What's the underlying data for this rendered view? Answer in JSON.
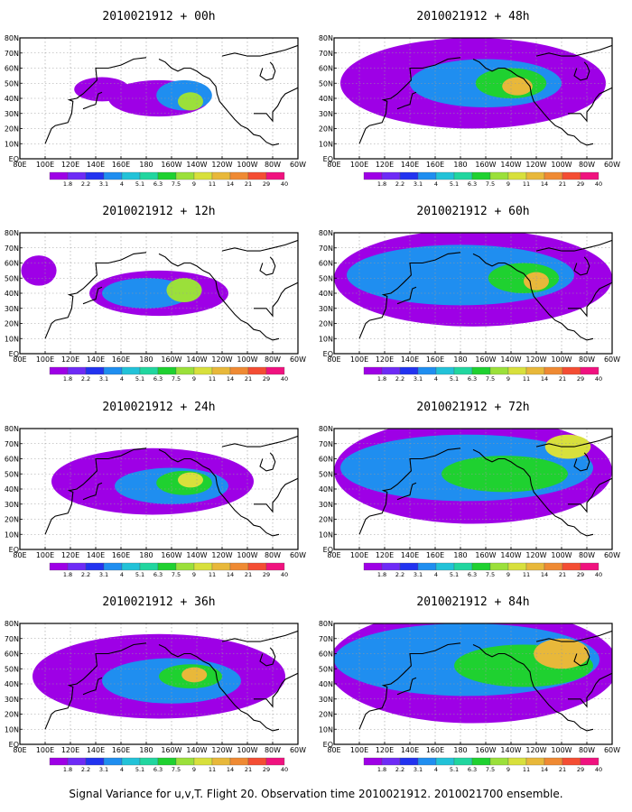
{
  "chart_data": {
    "type": "heatmap",
    "caption": "Signal Variance for u,v,T. Flight 20. Observation time 2010021912. 2010021700 ensemble.",
    "x_ticks": [
      "80E",
      "100E",
      "120E",
      "140E",
      "160E",
      "180",
      "160W",
      "140W",
      "120W",
      "100W",
      "80W",
      "60W"
    ],
    "x_range": [
      80,
      300
    ],
    "y_ticks": [
      "EQ",
      "10N",
      "20N",
      "30N",
      "40N",
      "50N",
      "60N",
      "70N",
      "80N"
    ],
    "y_range": [
      0,
      80
    ],
    "grid": true,
    "colorbar": {
      "labels": [
        "1.8",
        "2.2",
        "3.1",
        "4",
        "5.1",
        "6.3",
        "7.5",
        "9",
        "11",
        "14",
        "21",
        "29",
        "40"
      ],
      "colors": [
        "#9e00e6",
        "#6e2bf6",
        "#2233f0",
        "#1f8ef0",
        "#22c2d8",
        "#21d69f",
        "#1fd130",
        "#9be03a",
        "#d8e03c",
        "#e8b83a",
        "#ef8a33",
        "#f44d33",
        "#f0127f"
      ]
    },
    "panels": [
      {
        "title": "2010021912 + 00h",
        "lead": 0,
        "bands": [
          {
            "cx": 190,
            "cy": 40,
            "rx": 40,
            "ry": 12,
            "lvl": 0
          },
          {
            "cx": 145,
            "cy": 46,
            "rx": 22,
            "ry": 8,
            "lvl": 0
          },
          {
            "cx": 210,
            "cy": 42,
            "rx": 22,
            "ry": 10,
            "lvl": 3
          },
          {
            "cx": 215,
            "cy": 38,
            "rx": 10,
            "ry": 6,
            "lvl": 7
          }
        ]
      },
      {
        "title": "2010021912 + 12h",
        "lead": 12,
        "bands": [
          {
            "cx": 190,
            "cy": 40,
            "rx": 55,
            "ry": 15,
            "lvl": 0
          },
          {
            "cx": 95,
            "cy": 55,
            "rx": 14,
            "ry": 10,
            "lvl": 0
          },
          {
            "cx": 180,
            "cy": 40,
            "rx": 35,
            "ry": 10,
            "lvl": 3
          },
          {
            "cx": 210,
            "cy": 42,
            "rx": 14,
            "ry": 8,
            "lvl": 7
          }
        ]
      },
      {
        "title": "2010021912 + 24h",
        "lead": 24,
        "bands": [
          {
            "cx": 185,
            "cy": 45,
            "rx": 80,
            "ry": 22,
            "lvl": 0
          },
          {
            "cx": 200,
            "cy": 42,
            "rx": 45,
            "ry": 12,
            "lvl": 3
          },
          {
            "cx": 210,
            "cy": 44,
            "rx": 22,
            "ry": 8,
            "lvl": 6
          },
          {
            "cx": 215,
            "cy": 46,
            "rx": 10,
            "ry": 5,
            "lvl": 8
          }
        ]
      },
      {
        "title": "2010021912 + 36h",
        "lead": 36,
        "bands": [
          {
            "cx": 190,
            "cy": 45,
            "rx": 100,
            "ry": 28,
            "lvl": 0
          },
          {
            "cx": 200,
            "cy": 42,
            "rx": 55,
            "ry": 15,
            "lvl": 3
          },
          {
            "cx": 215,
            "cy": 45,
            "rx": 25,
            "ry": 8,
            "lvl": 6
          },
          {
            "cx": 218,
            "cy": 46,
            "rx": 10,
            "ry": 5,
            "lvl": 9
          }
        ]
      },
      {
        "title": "2010021912 + 48h",
        "lead": 48,
        "bands": [
          {
            "cx": 190,
            "cy": 50,
            "rx": 105,
            "ry": 30,
            "lvl": 0
          },
          {
            "cx": 200,
            "cy": 50,
            "rx": 60,
            "ry": 16,
            "lvl": 3
          },
          {
            "cx": 220,
            "cy": 50,
            "rx": 28,
            "ry": 10,
            "lvl": 6
          },
          {
            "cx": 225,
            "cy": 48,
            "rx": 12,
            "ry": 6,
            "lvl": 9
          }
        ]
      },
      {
        "title": "2010021912 + 60h",
        "lead": 60,
        "bands": [
          {
            "cx": 190,
            "cy": 50,
            "rx": 110,
            "ry": 32,
            "lvl": 0
          },
          {
            "cx": 180,
            "cy": 52,
            "rx": 90,
            "ry": 20,
            "lvl": 3
          },
          {
            "cx": 230,
            "cy": 50,
            "rx": 28,
            "ry": 10,
            "lvl": 6
          },
          {
            "cx": 240,
            "cy": 48,
            "rx": 10,
            "ry": 6,
            "lvl": 9
          }
        ]
      },
      {
        "title": "2010021912 + 72h",
        "lead": 72,
        "bands": [
          {
            "cx": 190,
            "cy": 52,
            "rx": 110,
            "ry": 35,
            "lvl": 0
          },
          {
            "cx": 185,
            "cy": 54,
            "rx": 100,
            "ry": 22,
            "lvl": 3
          },
          {
            "cx": 215,
            "cy": 50,
            "rx": 50,
            "ry": 12,
            "lvl": 6
          },
          {
            "cx": 265,
            "cy": 68,
            "rx": 18,
            "ry": 8,
            "lvl": 8
          }
        ]
      },
      {
        "title": "2010021912 + 84h",
        "lead": 84,
        "bands": [
          {
            "cx": 190,
            "cy": 52,
            "rx": 115,
            "ry": 38,
            "lvl": 0
          },
          {
            "cx": 185,
            "cy": 56,
            "rx": 105,
            "ry": 24,
            "lvl": 3
          },
          {
            "cx": 230,
            "cy": 52,
            "rx": 55,
            "ry": 14,
            "lvl": 6
          },
          {
            "cx": 260,
            "cy": 60,
            "rx": 22,
            "ry": 10,
            "lvl": 9
          }
        ]
      }
    ]
  }
}
